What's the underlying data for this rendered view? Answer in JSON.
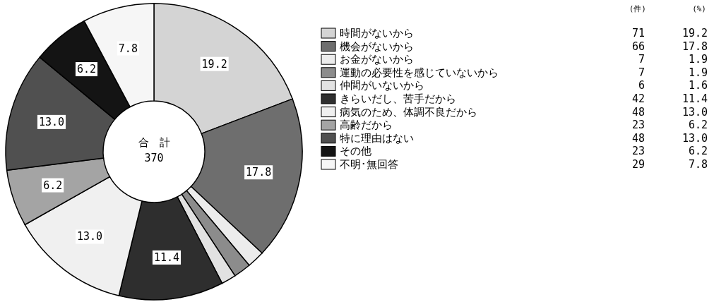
{
  "chart_data": {
    "type": "donut",
    "categories": [
      "時間がないから",
      "機会がないから",
      "お金がないから",
      "運動の必要性を感じていないから",
      "仲間がいないから",
      "きらいだし、苦手だから",
      "病気のため、体調不良だから",
      "高齢だから",
      "特に理由はない",
      "その他",
      "不明･無回答"
    ],
    "values": [
      19.2,
      17.8,
      1.9,
      1.9,
      1.6,
      11.4,
      13.0,
      6.2,
      13.0,
      6.2,
      7.8
    ],
    "value_labels": [
      "19.2",
      "17.8",
      "1.9",
      "1.9",
      "1.6",
      "11.4",
      "13.0",
      "6.2",
      "13.0",
      "6.2",
      "7.8"
    ],
    "colors": [
      "#d4d4d4",
      "#6e6e6e",
      "#ececec",
      "#8c8c8c",
      "#e2e2e2",
      "#2e2e2e",
      "#f0f0f0",
      "#a4a4a4",
      "#505050",
      "#141414",
      "#f6f6f6"
    ],
    "legend": "right",
    "annotations": [
      "合　計",
      "370",
      "(件)",
      "(%)",
      "71",
      "66",
      "7",
      "7",
      "6",
      "42",
      "48",
      "23",
      "48",
      "23",
      "29"
    ]
  }
}
